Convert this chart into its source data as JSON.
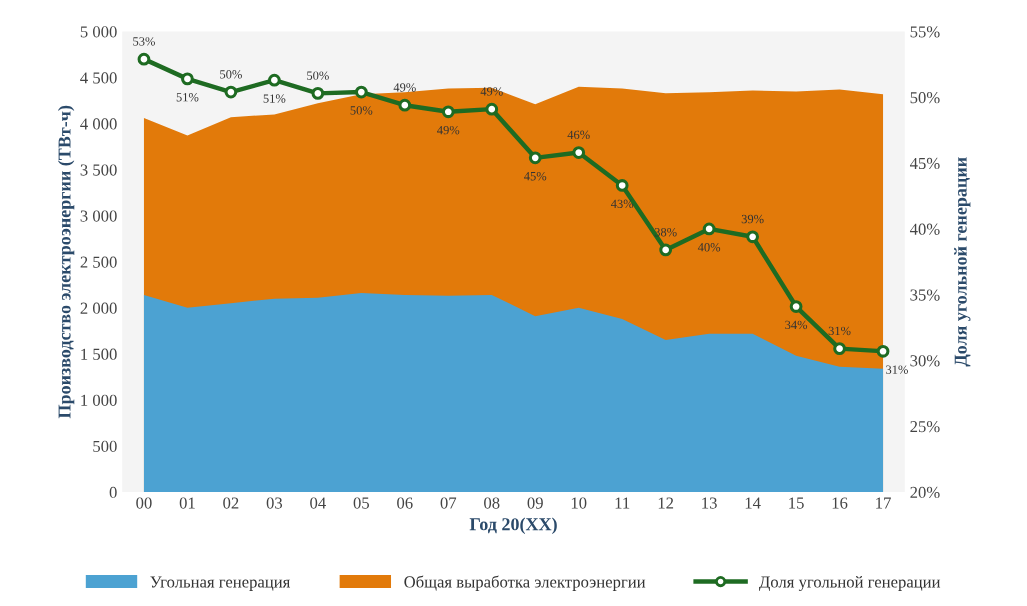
{
  "chart_data": {
    "type": "area",
    "xlabel": "Год 20(XX)",
    "ylabel": "Производство электроэнергии (ТВт-ч)",
    "y2label": "Доля угольной генерации",
    "categories": [
      "00",
      "01",
      "02",
      "03",
      "04",
      "05",
      "06",
      "07",
      "08",
      "09",
      "10",
      "11",
      "12",
      "13",
      "14",
      "15",
      "16",
      "17"
    ],
    "series": [
      {
        "name": "Угольная генерация",
        "color": "#4ca2d2",
        "values": [
          2140,
          2000,
          2050,
          2100,
          2110,
          2160,
          2140,
          2130,
          2140,
          1910,
          2000,
          1880,
          1650,
          1720,
          1720,
          1480,
          1360,
          1340
        ]
      },
      {
        "name": "Общая выработка электроэнергии",
        "color": "#e27a0a",
        "values": [
          4060,
          3870,
          4070,
          4100,
          4220,
          4320,
          4340,
          4380,
          4390,
          4210,
          4400,
          4380,
          4330,
          4340,
          4360,
          4350,
          4370,
          4320
        ]
      },
      {
        "name": "Доля угольной генерации",
        "type": "line",
        "axis": "y2",
        "color": "#1e6b22",
        "marker": "circle",
        "line_style": "solid",
        "values": [
          52.9,
          51.4,
          50.4,
          51.3,
          50.3,
          50.4,
          49.4,
          48.9,
          49.1,
          45.4,
          45.8,
          43.3,
          38.4,
          40.0,
          39.4,
          34.1,
          30.9,
          30.7
        ],
        "value_labels": [
          "53%",
          "51%",
          "50%",
          "51%",
          "50%",
          "50%",
          "49%",
          "49%",
          "49%",
          "45%",
          "46%",
          "43%",
          "38%",
          "40%",
          "39%",
          "34%",
          "31%",
          "31%"
        ]
      }
    ],
    "ylim": [
      0,
      5000
    ],
    "yticks": [
      {
        "value": 0,
        "label": "0"
      },
      {
        "value": 500,
        "label": "500"
      },
      {
        "value": 1000,
        "label": "1 000"
      },
      {
        "value": 1500,
        "label": "1 500"
      },
      {
        "value": 2000,
        "label": "2 000"
      },
      {
        "value": 2500,
        "label": "2 500"
      },
      {
        "value": 3000,
        "label": "3 000"
      },
      {
        "value": 3500,
        "label": "3 500"
      },
      {
        "value": 4000,
        "label": "4 000"
      },
      {
        "value": 4500,
        "label": "4 500"
      },
      {
        "value": 5000,
        "label": "5 000"
      }
    ],
    "y2lim": [
      20,
      55
    ],
    "y2ticks": [
      {
        "value": 20,
        "label": "20%"
      },
      {
        "value": 25,
        "label": "25%"
      },
      {
        "value": 30,
        "label": "30%"
      },
      {
        "value": 35,
        "label": "35%"
      },
      {
        "value": 40,
        "label": "40%"
      },
      {
        "value": 45,
        "label": "45%"
      },
      {
        "value": 50,
        "label": "50%"
      },
      {
        "value": 55,
        "label": "55%"
      }
    ],
    "grid": false,
    "legend": "bottom"
  }
}
